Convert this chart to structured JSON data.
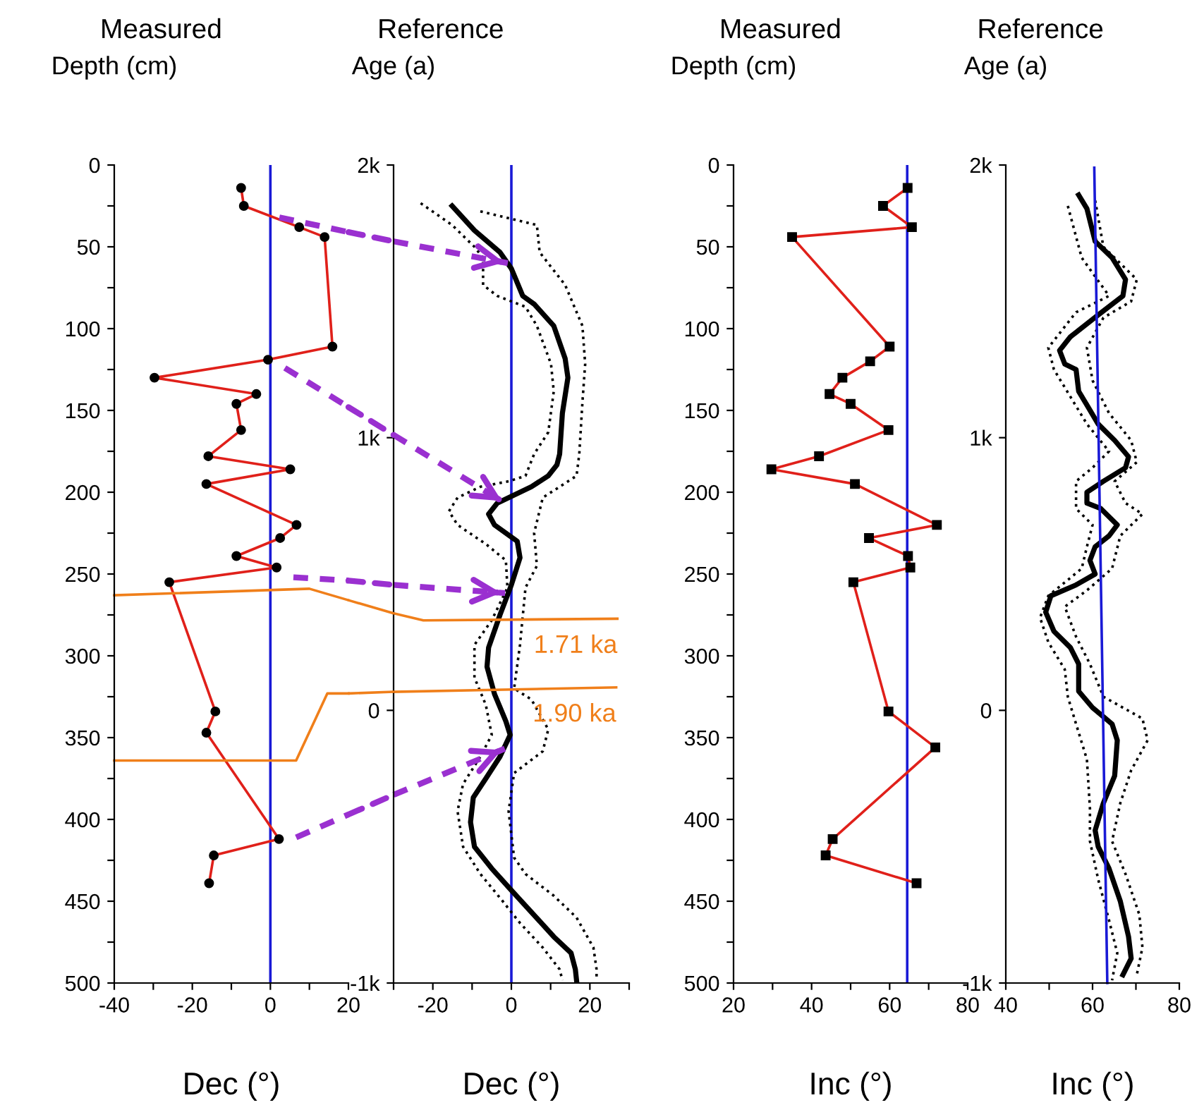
{
  "chart_data": [
    {
      "type": "line",
      "title": "Measured",
      "ylabel": "Depth (cm)",
      "xlabel": "Dec (°)",
      "xlim": [
        -40,
        20
      ],
      "xticks": [
        -40,
        {
          "value": -30,
          "label": null
        },
        -20,
        {
          "value": -10,
          "label": null
        },
        0,
        {
          "value": 10,
          "label": null
        },
        20
      ],
      "ylim": [
        500,
        0
      ],
      "yticks": [
        0,
        {
          "value": 25,
          "label": null
        },
        50,
        {
          "value": 75,
          "label": null
        },
        100,
        {
          "value": 125,
          "label": null
        },
        150,
        {
          "value": 175,
          "label": null
        },
        200,
        {
          "value": 225,
          "label": null
        },
        250,
        {
          "value": 275,
          "label": null
        },
        300,
        {
          "value": 325,
          "label": null
        },
        350,
        {
          "value": 375,
          "label": null
        },
        400,
        {
          "value": 425,
          "label": null
        },
        450,
        {
          "value": 475,
          "label": null
        },
        500
      ],
      "grid": false,
      "series": [
        {
          "color": "#e0201a",
          "marker": "circle",
          "line_style": "solid",
          "x": [
            -7.5,
            -6.8,
            7.4,
            13.9,
            15.9,
            -0.6,
            -29.7,
            -3.6,
            -8.7,
            -7.5,
            -15.9,
            5.1,
            -16.4,
            6.7,
            2.5,
            -8.7,
            1.6,
            -25.9,
            -14.1,
            -16.4,
            2.2,
            -14.5,
            -15.7
          ],
          "values": [
            14,
            25,
            38,
            44,
            111,
            119,
            130,
            140,
            146,
            162,
            178,
            186,
            195,
            220,
            228,
            239,
            246,
            255,
            334,
            347,
            412,
            422,
            439
          ]
        },
        {
          "color": "#f07f1a",
          "line_style": "solid",
          "x": [
            -40,
            10,
            20
          ],
          "values": [
            263,
            259,
            266
          ]
        },
        {
          "color": "#f07f1a",
          "line_style": "solid",
          "x": [
            -40,
            6.6,
            14.6,
            20
          ],
          "values": [
            364,
            364,
            323,
            323
          ]
        },
        {
          "color": "#9a30d0",
          "line_style": "dashed",
          "x": [
            2.3,
            20
          ],
          "values": [
            32,
            41
          ]
        },
        {
          "color": "#9a30d0",
          "line_style": "dashed",
          "x": [
            3.7,
            20
          ],
          "values": [
            124,
            148
          ]
        },
        {
          "color": "#9a30d0",
          "line_style": "dashed",
          "x": [
            5.9,
            20
          ],
          "values": [
            252,
            254
          ]
        },
        {
          "color": "#9a30d0",
          "line_style": "dashed",
          "x": [
            6.6,
            20
          ],
          "values": [
            411,
            397
          ]
        }
      ],
      "ref_lines": [
        {
          "axis": "x",
          "value": 0,
          "color": "#1a1ad6"
        }
      ]
    },
    {
      "type": "line",
      "title": "Reference",
      "ylabel": "Age (a)",
      "xlabel": "Dec (°)",
      "xlim": [
        -30,
        30
      ],
      "xticks": [
        {
          "value": -30,
          "label": null
        },
        -20,
        {
          "value": -10,
          "label": null
        },
        0,
        {
          "value": 10,
          "label": null
        },
        20,
        {
          "value": 30,
          "label": null
        }
      ],
      "ylim": [
        -1000,
        2000
      ],
      "yticks": [
        {
          "value": -1000,
          "label": "-1k"
        },
        0,
        {
          "value": 1000,
          "label": "1k"
        },
        {
          "value": 2000,
          "label": "2k"
        }
      ],
      "grid": false,
      "series": [
        {
          "color": "#000000",
          "line_style": "solid",
          "x": [
            -15.1,
            -9.4,
            -2.9,
            0,
            2.9,
            5.8,
            10.8,
            13.7,
            14.4,
            13.0,
            12.3,
            11.6,
            9.4,
            5.1,
            -0.7,
            -3.6,
            -5.8,
            -4.3,
            1.5,
            2.2,
            0,
            -2.9,
            -5.8,
            -6.2,
            -4.3,
            -1.4,
            -0.3,
            -2.9,
            -6.5,
            -9.7,
            -10.4,
            -9.4,
            -5.0,
            0,
            5.1,
            10.8,
            15.2,
            16.3,
            16.6
          ],
          "values": [
            1850,
            1760,
            1680,
            1620,
            1520,
            1490,
            1410,
            1290,
            1220,
            1090,
            940,
            900,
            860,
            820,
            780,
            760,
            720,
            680,
            620,
            560,
            460,
            350,
            230,
            160,
            60,
            -40,
            -90,
            -170,
            -250,
            -320,
            -410,
            -500,
            -580,
            -660,
            -740,
            -830,
            -890,
            -950,
            -990
          ]
        },
        {
          "color": "#000000",
          "line_style": "dotted",
          "x": [
            -7.9,
            6.5,
            7.2,
            13.7,
            18.1,
            18.8,
            18.1,
            17.3,
            16.6,
            8.0,
            5.8,
            6.5,
            3.6,
            2.2,
            0.7,
            5.1,
            9.4,
            8.0,
            0.7,
            -0.7,
            0.7,
            3.6,
            10.8,
            16.6,
            20.9,
            21.7,
            21.7
          ],
          "values": [
            1830,
            1780,
            1680,
            1560,
            1410,
            1270,
            1130,
            940,
            860,
            780,
            650,
            530,
            450,
            240,
            80,
            40,
            -70,
            -150,
            -230,
            -370,
            -540,
            -600,
            -680,
            -760,
            -870,
            -950,
            -990
          ]
        },
        {
          "color": "#000000",
          "line_style": "dotted",
          "x": [
            -23.1,
            -15.1,
            -9.4,
            -7.2,
            -7.2,
            -3.6,
            3.6,
            6.5,
            10.1,
            10.8,
            9.4,
            5.8,
            3.6,
            -0.7,
            -7.9,
            -13.7,
            -15.9,
            -13.7,
            -6.5,
            -1.4,
            -1.0,
            -5.0,
            -9.4,
            -9.4,
            -6.5,
            -5.0,
            -7.9,
            -12.3,
            -13.7,
            -12.3,
            -7.9,
            -2.2,
            2.2,
            8.0,
            12.3,
            13.0
          ],
          "values": [
            1860,
            1780,
            1700,
            1660,
            1560,
            1520,
            1480,
            1410,
            1270,
            1170,
            1020,
            940,
            860,
            840,
            820,
            780,
            730,
            680,
            610,
            550,
            450,
            330,
            240,
            120,
            20,
            -90,
            -170,
            -270,
            -370,
            -500,
            -600,
            -700,
            -780,
            -870,
            -950,
            -990
          ]
        },
        {
          "name": "1.71 ka",
          "color": "#f07f1a",
          "line_style": "solid",
          "x": [
            -30,
            -22.4,
            27
          ],
          "values": [
            356,
            330,
            336
          ]
        },
        {
          "name": "1.90 ka",
          "color": "#f07f1a",
          "line_style": "solid",
          "x": [
            -30,
            26.7
          ],
          "values": [
            68,
            84
          ]
        },
        {
          "color": "#9a30d0",
          "line_style": "dashed",
          "x": [
            -30,
            -0.9
          ],
          "values": [
            1720,
            1640
          ]
        },
        {
          "color": "#9a30d0",
          "line_style": "dashed",
          "x": [
            -30,
            -1.6
          ],
          "values": [
            1010,
            760
          ]
        },
        {
          "color": "#9a30d0",
          "line_style": "dashed",
          "x": [
            -30,
            -1.6
          ],
          "values": [
            460,
            430
          ]
        },
        {
          "color": "#9a30d0",
          "line_style": "dashed",
          "x": [
            -30,
            -1.6
          ],
          "values": [
            -310,
            -140
          ]
        }
      ],
      "ref_lines": [
        {
          "axis": "x",
          "value": 0,
          "color": "#1a1ad6"
        }
      ]
    },
    {
      "type": "line",
      "title": "Measured",
      "ylabel": "Depth (cm)",
      "xlabel": "Inc (°)",
      "xlim": [
        20,
        80
      ],
      "xticks": [
        20,
        {
          "value": 30,
          "label": null
        },
        40,
        {
          "value": 50,
          "label": null
        },
        60,
        {
          "value": 70,
          "label": null
        },
        80
      ],
      "ylim": [
        500,
        0
      ],
      "yticks": [
        0,
        {
          "value": 25,
          "label": null
        },
        50,
        {
          "value": 75,
          "label": null
        },
        100,
        {
          "value": 125,
          "label": null
        },
        150,
        {
          "value": 175,
          "label": null
        },
        200,
        {
          "value": 225,
          "label": null
        },
        250,
        {
          "value": 275,
          "label": null
        },
        300,
        {
          "value": 325,
          "label": null
        },
        350,
        {
          "value": 375,
          "label": null
        },
        400,
        {
          "value": 425,
          "label": null
        },
        450,
        {
          "value": 475,
          "label": null
        },
        500
      ],
      "grid": false,
      "series": [
        {
          "color": "#e0201a",
          "marker": "square",
          "line_style": "solid",
          "x": [
            64.6,
            58.3,
            65.7,
            35,
            60,
            55,
            47.9,
            44.6,
            50,
            59.7,
            41.9,
            29.7,
            51.1,
            72.1,
            54.7,
            64.7,
            65.3,
            50.7,
            59.7,
            71.7,
            45.4,
            43.6,
            66.9
          ],
          "values": [
            14,
            25,
            38,
            44,
            111,
            120,
            130,
            140,
            146,
            162,
            178,
            186,
            195,
            220,
            228,
            239,
            246,
            255,
            334,
            356,
            412,
            422,
            439
          ]
        }
      ],
      "ref_lines": [
        {
          "axis": "x",
          "value": 64.5,
          "color": "#1a1ad6"
        }
      ]
    },
    {
      "type": "line",
      "title": "Reference",
      "ylabel": "Age (a)",
      "xlabel": "Inc (°)",
      "xlim": [
        40,
        80
      ],
      "xticks": [
        40,
        {
          "value": 50,
          "label": null
        },
        60,
        {
          "value": 70,
          "label": null
        },
        80
      ],
      "ylim": [
        -1000,
        2000
      ],
      "yticks": [
        {
          "value": -1000,
          "label": "-1k"
        },
        0,
        {
          "value": 1000,
          "label": "1k"
        },
        {
          "value": 2000,
          "label": "2k"
        }
      ],
      "grid": false,
      "series": [
        {
          "color": "#000000",
          "line_style": "solid",
          "x": [
            56.8,
            58.7,
            60.6,
            64.5,
            67.6,
            67.0,
            61.3,
            54.9,
            52.4,
            53.6,
            56.2,
            56.8,
            58.7,
            61.3,
            65.1,
            68.3,
            67.6,
            62.5,
            58.7,
            58.7,
            61.9,
            65.7,
            63.8,
            60.6,
            59.4,
            60.6,
            56.2,
            50.4,
            49.2,
            51.1,
            54.9,
            56.8,
            56.8,
            60,
            64.5,
            65.7,
            65.1,
            62.5,
            60.6,
            61.3,
            63.8,
            66.4,
            68.3,
            68.9,
            67.0
          ],
          "values": [
            1890,
            1840,
            1720,
            1660,
            1580,
            1520,
            1450,
            1370,
            1320,
            1270,
            1250,
            1170,
            1120,
            1050,
            990,
            930,
            890,
            840,
            800,
            760,
            740,
            680,
            640,
            600,
            550,
            500,
            460,
            420,
            360,
            290,
            230,
            170,
            70,
            10,
            -50,
            -110,
            -240,
            -340,
            -440,
            -500,
            -580,
            -700,
            -830,
            -910,
            -970
          ]
        },
        {
          "color": "#000000",
          "line_style": "dotted",
          "x": [
            60.6,
            62.5,
            70.2,
            68.9,
            62.5,
            58.7,
            60,
            63.8,
            68.9,
            70.2,
            65.1,
            67.6,
            71.5,
            66.4,
            64.5,
            58.7,
            53.6,
            56.2,
            59.4,
            62.5,
            71.5,
            72.7,
            68.9,
            66.4,
            64.5,
            67.6,
            70.8,
            71.5,
            70.2
          ],
          "values": [
            1870,
            1700,
            1580,
            1500,
            1440,
            1330,
            1210,
            1090,
            990,
            910,
            840,
            760,
            720,
            640,
            520,
            440,
            380,
            270,
            170,
            50,
            -30,
            -110,
            -220,
            -340,
            -480,
            -600,
            -750,
            -870,
            -970
          ]
        },
        {
          "color": "#000000",
          "line_style": "dotted",
          "x": [
            54.3,
            57.5,
            63.8,
            56.2,
            49.8,
            51.1,
            54.9,
            58.7,
            63.8,
            60,
            56.2,
            56.2,
            60,
            58.7,
            57.5,
            49.8,
            47.9,
            49.8,
            53.6,
            54.3,
            56.2,
            58.7,
            59.4,
            59.4,
            61.3,
            63.8,
            65.7,
            64.5
          ],
          "values": [
            1850,
            1660,
            1520,
            1460,
            1330,
            1250,
            1150,
            1050,
            950,
            890,
            840,
            740,
            680,
            600,
            520,
            420,
            340,
            250,
            150,
            50,
            -50,
            -180,
            -360,
            -480,
            -620,
            -770,
            -890,
            -990
          ]
        },
        {
          "color": "#1a1ad6",
          "line_style": "solid",
          "x": [
            60.4,
            63.4
          ],
          "values": [
            1990,
            -1000
          ]
        }
      ]
    }
  ]
}
